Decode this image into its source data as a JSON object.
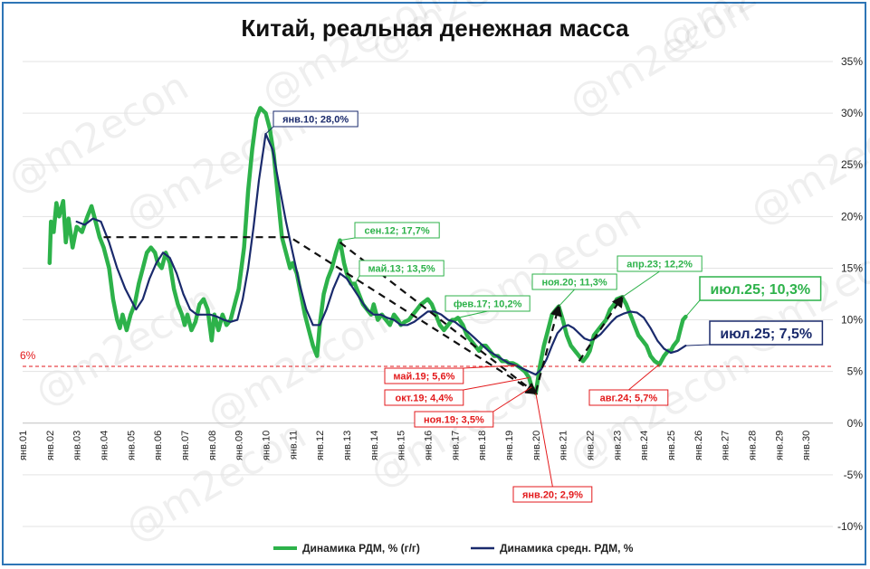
{
  "chart_data": {
    "type": "line",
    "title": "Китай, реальная денежная масса",
    "ylim": [
      -10,
      35
    ],
    "y_ticks": [
      "35%",
      "30%",
      "25%",
      "20%",
      "15%",
      "10%",
      "5%",
      "0%",
      "-5%",
      "-10%"
    ],
    "x_ticks": [
      "янв.01",
      "янв.02",
      "янв.03",
      "янв.04",
      "янв.05",
      "янв.06",
      "янв.07",
      "янв.08",
      "янв.09",
      "янв.10",
      "янв.11",
      "янв.12",
      "янв.13",
      "янв.14",
      "янв.15",
      "янв.16",
      "янв.17",
      "янв.18",
      "янв.19",
      "янв.20",
      "янв.21",
      "янв.22",
      "янв.23",
      "янв.24",
      "янв.25",
      "янв.26",
      "янв.27",
      "янв.28",
      "янв.29",
      "янв.30"
    ],
    "grid": true,
    "legend_position": "bottom",
    "watermark": "@m2econ",
    "reference_line": {
      "label": "6%",
      "value": 5.5,
      "color": "#e31a1c"
    },
    "series": [
      {
        "name": "Динамика РДМ, % (г/г)",
        "color": "#2db24a",
        "points": [
          [
            2002.0,
            15.5
          ],
          [
            2002.05,
            19.5
          ],
          [
            2002.15,
            18.5
          ],
          [
            2002.25,
            21.3
          ],
          [
            2002.35,
            20.0
          ],
          [
            2002.5,
            21.5
          ],
          [
            2002.6,
            17.5
          ],
          [
            2002.7,
            19.8
          ],
          [
            2002.85,
            17.0
          ],
          [
            2003.0,
            19.0
          ],
          [
            2003.2,
            18.5
          ],
          [
            2003.4,
            20.0
          ],
          [
            2003.55,
            21.0
          ],
          [
            2003.7,
            19.5
          ],
          [
            2003.85,
            18.0
          ],
          [
            2004.0,
            17.0
          ],
          [
            2004.2,
            15.0
          ],
          [
            2004.35,
            12.0
          ],
          [
            2004.5,
            10.0
          ],
          [
            2004.6,
            9.2
          ],
          [
            2004.7,
            10.5
          ],
          [
            2004.85,
            9.0
          ],
          [
            2005.0,
            10.5
          ],
          [
            2005.15,
            11.5
          ],
          [
            2005.3,
            13.5
          ],
          [
            2005.45,
            15.0
          ],
          [
            2005.6,
            16.5
          ],
          [
            2005.75,
            17.0
          ],
          [
            2005.9,
            16.5
          ],
          [
            2006.0,
            15.5
          ],
          [
            2006.15,
            15.0
          ],
          [
            2006.3,
            16.5
          ],
          [
            2006.45,
            15.5
          ],
          [
            2006.6,
            13.0
          ],
          [
            2006.75,
            11.5
          ],
          [
            2006.9,
            10.5
          ],
          [
            2007.0,
            9.5
          ],
          [
            2007.1,
            10.5
          ],
          [
            2007.25,
            9.0
          ],
          [
            2007.4,
            9.8
          ],
          [
            2007.55,
            11.5
          ],
          [
            2007.7,
            12.0
          ],
          [
            2007.85,
            11.0
          ],
          [
            2008.0,
            8.0
          ],
          [
            2008.1,
            10.5
          ],
          [
            2008.25,
            9.0
          ],
          [
            2008.4,
            10.5
          ],
          [
            2008.55,
            9.5
          ],
          [
            2008.7,
            10.0
          ],
          [
            2008.85,
            11.5
          ],
          [
            2009.0,
            13.0
          ],
          [
            2009.2,
            17.0
          ],
          [
            2009.35,
            22.5
          ],
          [
            2009.5,
            26.5
          ],
          [
            2009.65,
            29.5
          ],
          [
            2009.8,
            30.5
          ],
          [
            2010.0,
            30.0
          ],
          [
            2010.15,
            28.5
          ],
          [
            2010.3,
            26.0
          ],
          [
            2010.45,
            22.0
          ],
          [
            2010.6,
            18.0
          ],
          [
            2010.75,
            16.5
          ],
          [
            2010.9,
            15.0
          ],
          [
            2011.0,
            15.5
          ],
          [
            2011.15,
            14.5
          ],
          [
            2011.3,
            12.5
          ],
          [
            2011.45,
            10.5
          ],
          [
            2011.6,
            9.0
          ],
          [
            2011.75,
            7.5
          ],
          [
            2011.9,
            6.5
          ],
          [
            2012.0,
            9.5
          ],
          [
            2012.15,
            12.5
          ],
          [
            2012.3,
            14.0
          ],
          [
            2012.45,
            15.0
          ],
          [
            2012.6,
            16.5
          ],
          [
            2012.75,
            17.7
          ],
          [
            2012.9,
            15.5
          ],
          [
            2013.0,
            14.5
          ],
          [
            2013.15,
            13.5
          ],
          [
            2013.3,
            13.5
          ],
          [
            2013.45,
            12.5
          ],
          [
            2013.6,
            11.5
          ],
          [
            2013.75,
            11.0
          ],
          [
            2013.9,
            10.5
          ],
          [
            2014.0,
            11.5
          ],
          [
            2014.15,
            10.0
          ],
          [
            2014.3,
            10.5
          ],
          [
            2014.45,
            10.0
          ],
          [
            2014.6,
            9.5
          ],
          [
            2014.75,
            10.5
          ],
          [
            2014.9,
            10.0
          ],
          [
            2015.0,
            9.5
          ],
          [
            2015.15,
            9.8
          ],
          [
            2015.3,
            10.0
          ],
          [
            2015.45,
            10.5
          ],
          [
            2015.6,
            11.0
          ],
          [
            2015.75,
            11.5
          ],
          [
            2015.9,
            11.8
          ],
          [
            2016.0,
            12.0
          ],
          [
            2016.15,
            11.5
          ],
          [
            2016.3,
            10.5
          ],
          [
            2016.45,
            9.5
          ],
          [
            2016.6,
            9.0
          ],
          [
            2016.75,
            9.5
          ],
          [
            2016.9,
            10.0
          ],
          [
            2017.0,
            10.0
          ],
          [
            2017.12,
            10.2
          ],
          [
            2017.3,
            9.5
          ],
          [
            2017.45,
            8.5
          ],
          [
            2017.6,
            8.0
          ],
          [
            2017.75,
            7.5
          ],
          [
            2017.9,
            7.0
          ],
          [
            2018.0,
            7.5
          ],
          [
            2018.15,
            7.5
          ],
          [
            2018.3,
            7.0
          ],
          [
            2018.45,
            6.5
          ],
          [
            2018.6,
            6.5
          ],
          [
            2018.75,
            6.0
          ],
          [
            2018.9,
            6.0
          ],
          [
            2019.0,
            5.8
          ],
          [
            2019.15,
            5.8
          ],
          [
            2019.3,
            5.6
          ],
          [
            2019.45,
            5.3
          ],
          [
            2019.6,
            5.0
          ],
          [
            2019.75,
            4.4
          ],
          [
            2019.85,
            3.5
          ],
          [
            2020.0,
            2.9
          ],
          [
            2020.15,
            5.5
          ],
          [
            2020.3,
            7.5
          ],
          [
            2020.45,
            9.0
          ],
          [
            2020.6,
            10.5
          ],
          [
            2020.75,
            11.0
          ],
          [
            2020.85,
            11.3
          ],
          [
            2021.0,
            10.0
          ],
          [
            2021.15,
            8.5
          ],
          [
            2021.3,
            7.5
          ],
          [
            2021.45,
            7.0
          ],
          [
            2021.6,
            6.5
          ],
          [
            2021.75,
            6.0
          ],
          [
            2021.9,
            6.5
          ],
          [
            2022.0,
            7.0
          ],
          [
            2022.15,
            8.5
          ],
          [
            2022.3,
            9.0
          ],
          [
            2022.45,
            9.5
          ],
          [
            2022.6,
            10.0
          ],
          [
            2022.75,
            11.0
          ],
          [
            2022.9,
            11.5
          ],
          [
            2023.0,
            12.0
          ],
          [
            2023.2,
            12.2
          ],
          [
            2023.35,
            11.5
          ],
          [
            2023.5,
            10.5
          ],
          [
            2023.65,
            9.5
          ],
          [
            2023.8,
            8.5
          ],
          [
            2023.95,
            8.0
          ],
          [
            2024.1,
            7.5
          ],
          [
            2024.25,
            6.5
          ],
          [
            2024.4,
            6.0
          ],
          [
            2024.58,
            5.7
          ],
          [
            2024.75,
            6.5
          ],
          [
            2024.9,
            7.0
          ],
          [
            2025.0,
            7.0
          ],
          [
            2025.1,
            7.5
          ],
          [
            2025.25,
            8.0
          ],
          [
            2025.35,
            9.0
          ],
          [
            2025.45,
            10.0
          ],
          [
            2025.55,
            10.3
          ]
        ]
      },
      {
        "name": "Динамика средн. РДМ, %",
        "color": "#1a2a6c",
        "points": [
          [
            2003.0,
            19.5
          ],
          [
            2003.3,
            19.2
          ],
          [
            2003.6,
            19.8
          ],
          [
            2003.9,
            19.5
          ],
          [
            2004.2,
            17.5
          ],
          [
            2004.5,
            15.0
          ],
          [
            2004.8,
            13.0
          ],
          [
            2005.0,
            12.0
          ],
          [
            2005.2,
            11.0
          ],
          [
            2005.45,
            12.0
          ],
          [
            2005.7,
            14.0
          ],
          [
            2005.95,
            15.5
          ],
          [
            2006.2,
            16.5
          ],
          [
            2006.45,
            16.0
          ],
          [
            2006.7,
            14.5
          ],
          [
            2006.95,
            12.5
          ],
          [
            2007.2,
            11.0
          ],
          [
            2007.45,
            10.5
          ],
          [
            2007.7,
            10.5
          ],
          [
            2007.95,
            10.5
          ],
          [
            2008.2,
            10.3
          ],
          [
            2008.45,
            10.0
          ],
          [
            2008.7,
            9.8
          ],
          [
            2008.95,
            10.0
          ],
          [
            2009.15,
            12.0
          ],
          [
            2009.35,
            15.0
          ],
          [
            2009.55,
            19.0
          ],
          [
            2009.75,
            23.5
          ],
          [
            2010.0,
            28.0
          ],
          [
            2010.25,
            26.5
          ],
          [
            2010.5,
            23.0
          ],
          [
            2010.75,
            19.5
          ],
          [
            2011.0,
            16.5
          ],
          [
            2011.25,
            13.5
          ],
          [
            2011.5,
            11.0
          ],
          [
            2011.75,
            9.5
          ],
          [
            2012.0,
            9.5
          ],
          [
            2012.25,
            11.0
          ],
          [
            2012.5,
            13.0
          ],
          [
            2012.75,
            14.5
          ],
          [
            2013.0,
            14.0
          ],
          [
            2013.25,
            13.0
          ],
          [
            2013.5,
            12.0
          ],
          [
            2013.75,
            11.0
          ],
          [
            2014.0,
            10.5
          ],
          [
            2014.25,
            10.5
          ],
          [
            2014.5,
            10.2
          ],
          [
            2014.75,
            10.0
          ],
          [
            2015.0,
            9.5
          ],
          [
            2015.25,
            9.5
          ],
          [
            2015.5,
            9.8
          ],
          [
            2015.75,
            10.3
          ],
          [
            2016.0,
            10.8
          ],
          [
            2016.25,
            10.8
          ],
          [
            2016.5,
            10.5
          ],
          [
            2016.75,
            10.0
          ],
          [
            2017.0,
            9.8
          ],
          [
            2017.25,
            9.3
          ],
          [
            2017.5,
            8.8
          ],
          [
            2017.75,
            8.2
          ],
          [
            2018.0,
            7.6
          ],
          [
            2018.25,
            7.0
          ],
          [
            2018.5,
            6.6
          ],
          [
            2018.75,
            6.2
          ],
          [
            2019.0,
            5.8
          ],
          [
            2019.25,
            5.6
          ],
          [
            2019.5,
            5.3
          ],
          [
            2019.75,
            5.0
          ],
          [
            2020.0,
            4.7
          ],
          [
            2020.2,
            5.2
          ],
          [
            2020.4,
            6.2
          ],
          [
            2020.6,
            7.5
          ],
          [
            2020.8,
            8.7
          ],
          [
            2021.0,
            9.3
          ],
          [
            2021.2,
            9.5
          ],
          [
            2021.4,
            9.2
          ],
          [
            2021.6,
            8.7
          ],
          [
            2021.8,
            8.2
          ],
          [
            2022.0,
            8.0
          ],
          [
            2022.2,
            8.2
          ],
          [
            2022.4,
            8.6
          ],
          [
            2022.6,
            9.2
          ],
          [
            2022.8,
            9.8
          ],
          [
            2023.0,
            10.3
          ],
          [
            2023.25,
            10.6
          ],
          [
            2023.5,
            10.8
          ],
          [
            2023.75,
            10.7
          ],
          [
            2024.0,
            10.2
          ],
          [
            2024.25,
            9.2
          ],
          [
            2024.5,
            8.0
          ],
          [
            2024.75,
            7.2
          ],
          [
            2025.0,
            6.8
          ],
          [
            2025.25,
            7.0
          ],
          [
            2025.55,
            7.5
          ]
        ]
      }
    ],
    "annotations": [
      {
        "text": "янв.10; 28,0%",
        "color": "#1a2a6c",
        "x": 2010.0,
        "y": 28.0,
        "large": false
      },
      {
        "text": "сен.12; 17,7%",
        "color": "#2db24a",
        "x": 2012.75,
        "y": 17.7,
        "large": false
      },
      {
        "text": "май.13; 13,5%",
        "color": "#2db24a",
        "x": 2013.3,
        "y": 13.5,
        "large": false
      },
      {
        "text": "фев.17; 10,2%",
        "color": "#2db24a",
        "x": 2017.12,
        "y": 10.2,
        "large": false
      },
      {
        "text": "ноя.20; 11,3%",
        "color": "#2db24a",
        "x": 2020.85,
        "y": 11.3,
        "large": false
      },
      {
        "text": "апр.23; 12,2%",
        "color": "#2db24a",
        "x": 2023.2,
        "y": 12.2,
        "large": false
      },
      {
        "text": "июл.25; 10,3%",
        "color": "#2db24a",
        "x": 2025.55,
        "y": 10.3,
        "large": true
      },
      {
        "text": "июл.25; 7,5%",
        "color": "#1a2a6c",
        "x": 2025.55,
        "y": 7.5,
        "large": true
      },
      {
        "text": "май.19; 5,6%",
        "color": "#e31a1c",
        "x": 2019.3,
        "y": 5.6,
        "large": false
      },
      {
        "text": "окт.19; 4,4%",
        "color": "#e31a1c",
        "x": 2019.75,
        "y": 4.4,
        "large": false
      },
      {
        "text": "ноя.19; 3,5%",
        "color": "#e31a1c",
        "x": 2019.85,
        "y": 3.5,
        "large": false
      },
      {
        "text": "янв.20; 2,9%",
        "color": "#e31a1c",
        "x": 2020.0,
        "y": 2.9,
        "large": false
      },
      {
        "text": "авг.24; 5,7%",
        "color": "#e31a1c",
        "x": 2024.58,
        "y": 5.7,
        "large": false
      }
    ],
    "trend_arrows": [
      [
        [
          2004.0,
          18.0
        ],
        [
          2010.9,
          18.0
        ],
        [
          2020.0,
          2.9
        ]
      ],
      [
        [
          2012.75,
          17.5
        ],
        [
          2020.0,
          2.9
        ]
      ],
      [
        [
          2020.0,
          3.0
        ],
        [
          2020.85,
          11.3
        ]
      ],
      [
        [
          2021.6,
          6.0
        ],
        [
          2023.2,
          12.2
        ]
      ]
    ]
  }
}
